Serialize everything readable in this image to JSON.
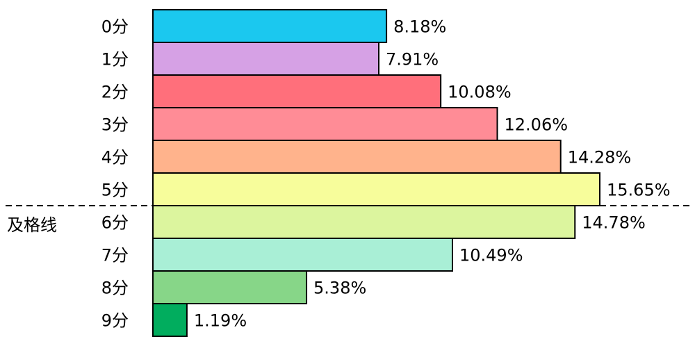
{
  "chart_data": {
    "type": "bar",
    "orientation": "horizontal",
    "categories": [
      "0分",
      "1分",
      "2分",
      "3分",
      "4分",
      "5分",
      "6分",
      "7分",
      "8分",
      "9分"
    ],
    "values": [
      8.18,
      7.91,
      10.08,
      12.06,
      14.28,
      15.65,
      14.78,
      10.49,
      5.38,
      1.19
    ],
    "value_labels": [
      "8.18%",
      "7.91%",
      "10.08%",
      "12.06%",
      "14.28%",
      "15.65%",
      "14.78%",
      "10.49%",
      "5.38%",
      "1.19%"
    ],
    "colors": [
      "#1bc8ef",
      "#d6a1e5",
      "#ff6f7b",
      "#ff8c96",
      "#ffb38c",
      "#f7fd9b",
      "#dcf59e",
      "#a9efd6",
      "#87d688",
      "#01ad5e"
    ],
    "annotation": "及格线"
  }
}
